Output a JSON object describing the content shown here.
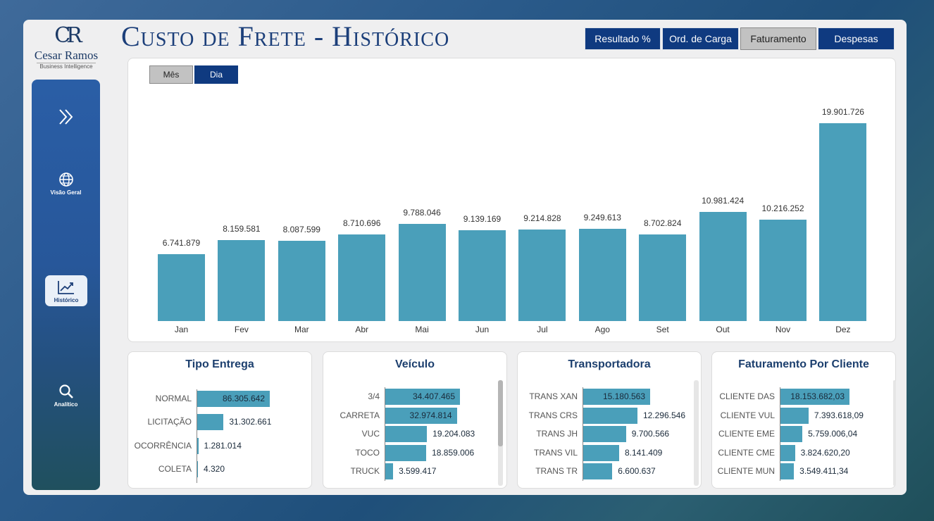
{
  "logo": {
    "mark": "CR",
    "name": "Cesar Ramos",
    "sub": "Business Intelligence"
  },
  "header": {
    "title": "Custo de Frete - Histórico"
  },
  "tabs": [
    {
      "label": "Resultado %",
      "selected": false
    },
    {
      "label": "Ord. de Carga",
      "selected": false
    },
    {
      "label": "Faturamento",
      "selected": true
    },
    {
      "label": "Despesas",
      "selected": false
    }
  ],
  "sidebar": {
    "items": [
      {
        "label": "",
        "icon": "expand-chevrons-icon"
      },
      {
        "label": "Visão Geral",
        "icon": "globe-icon"
      },
      {
        "label": "Histórico",
        "icon": "trend-chart-icon",
        "active": true
      },
      {
        "label": "Analítico",
        "icon": "search-icon"
      }
    ]
  },
  "toggle": {
    "mes": "Mês",
    "dia": "Dia",
    "selected": "Dia"
  },
  "chart_data": [
    {
      "type": "bar",
      "categories": [
        "Jan",
        "Fev",
        "Mar",
        "Abr",
        "Mai",
        "Jun",
        "Jul",
        "Ago",
        "Set",
        "Out",
        "Nov",
        "Dez"
      ],
      "values": [
        6741879,
        8159581,
        8087599,
        8710696,
        9788046,
        9139169,
        9214828,
        9249613,
        8702824,
        10981424,
        10216252,
        19901726
      ],
      "labels": [
        "6.741.879",
        "8.159.581",
        "8.087.599",
        "8.710.696",
        "9.788.046",
        "9.139.169",
        "9.214.828",
        "9.249.613",
        "8.702.824",
        "10.981.424",
        "10.216.252",
        "19.901.726"
      ],
      "title": "",
      "xlabel": "",
      "ylabel": "",
      "ylim": [
        0,
        19901726
      ]
    },
    {
      "type": "bar",
      "title": "Tipo Entrega",
      "categories": [
        "NORMAL",
        "LICITAÇÃO",
        "OCORRÊNCIA",
        "COLETA"
      ],
      "values": [
        86305642,
        31302661,
        1281014,
        4320
      ],
      "labels": [
        "86.305.642",
        "31.302.661",
        "1.281.014",
        "4.320"
      ]
    },
    {
      "type": "bar",
      "title": "Veículo",
      "categories": [
        "3/4",
        "CARRETA",
        "VUC",
        "TOCO",
        "TRUCK"
      ],
      "values": [
        34407465,
        32974814,
        19204083,
        18859006,
        3599417
      ],
      "labels": [
        "34.407.465",
        "32.974.814",
        "19.204.083",
        "18.859.006",
        "3.599.417"
      ]
    },
    {
      "type": "bar",
      "title": "Transportadora",
      "categories": [
        "TRANS XAN",
        "TRANS CRS",
        "TRANS JH",
        "TRANS VIL",
        "TRANS TR"
      ],
      "values": [
        15180563,
        12296546,
        9700566,
        8141409,
        6600637
      ],
      "labels": [
        "15.180.563",
        "12.296.546",
        "9.700.566",
        "8.141.409",
        "6.600.637"
      ]
    },
    {
      "type": "bar",
      "title": "Faturamento Por Cliente",
      "categories": [
        "CLIENTE DAS",
        "CLIENTE VUL",
        "CLIENTE EME",
        "CLIENTE CME",
        "CLIENTE MUN"
      ],
      "values": [
        18153682.03,
        7393618.09,
        5759006.04,
        3824620.2,
        3549411.34
      ],
      "labels": [
        "18.153.682,03",
        "7.393.618,09",
        "5.759.006,04",
        "3.824.620,20",
        "3.549.411,34"
      ]
    }
  ],
  "colors": {
    "accent": "#0f3a80",
    "bar": "#4a9fba",
    "title": "#1c3f7a"
  }
}
